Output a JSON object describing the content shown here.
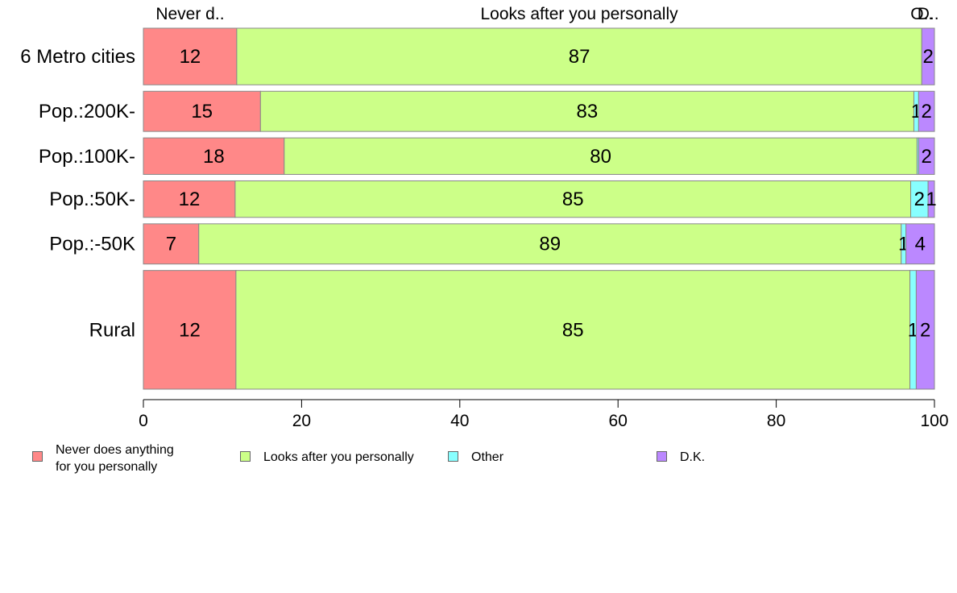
{
  "chart_data": {
    "type": "bar",
    "orientation": "horizontal",
    "stacked": true,
    "categories": [
      "6 Metro cities",
      "Pop.:200K-",
      "Pop.:100K-",
      "Pop.:50K-",
      "Pop.:-50K",
      "Rural"
    ],
    "series": [
      {
        "name": "Never does anything\nfor you personally",
        "top_label": "Never d..",
        "color": "#ff8888",
        "values": [
          11.8,
          14.8,
          17.8,
          11.6,
          7.0,
          11.7
        ],
        "labels": [
          "12",
          "15",
          "18",
          "12",
          "7",
          "12"
        ]
      },
      {
        "name": "Looks after you personally",
        "top_label": "Looks after you personally",
        "color": "#ccff88",
        "values": [
          86.6,
          82.6,
          80.0,
          85.4,
          88.8,
          85.2
        ],
        "labels": [
          "87",
          "83",
          "80",
          "85",
          "89",
          "85"
        ]
      },
      {
        "name": "Other",
        "top_label": "O..",
        "color": "#88ffff",
        "values": [
          0.0,
          0.6,
          0.2,
          2.2,
          0.6,
          0.8
        ],
        "labels": [
          "",
          "1",
          "",
          "2",
          "1",
          "1"
        ]
      },
      {
        "name": "D.K.",
        "top_label": "D..",
        "color": "#bb88ff",
        "values": [
          1.6,
          2.0,
          2.0,
          0.8,
          3.6,
          2.3
        ],
        "labels": [
          "2",
          "2",
          "2",
          "1",
          "4",
          "2"
        ]
      }
    ],
    "category_weights": [
      0.155,
      0.11,
      0.1,
      0.1,
      0.11,
      0.325
    ],
    "xlim": [
      0,
      100
    ],
    "x_ticks": [
      0,
      20,
      40,
      60,
      80,
      100
    ],
    "legend_position": "bottom"
  }
}
